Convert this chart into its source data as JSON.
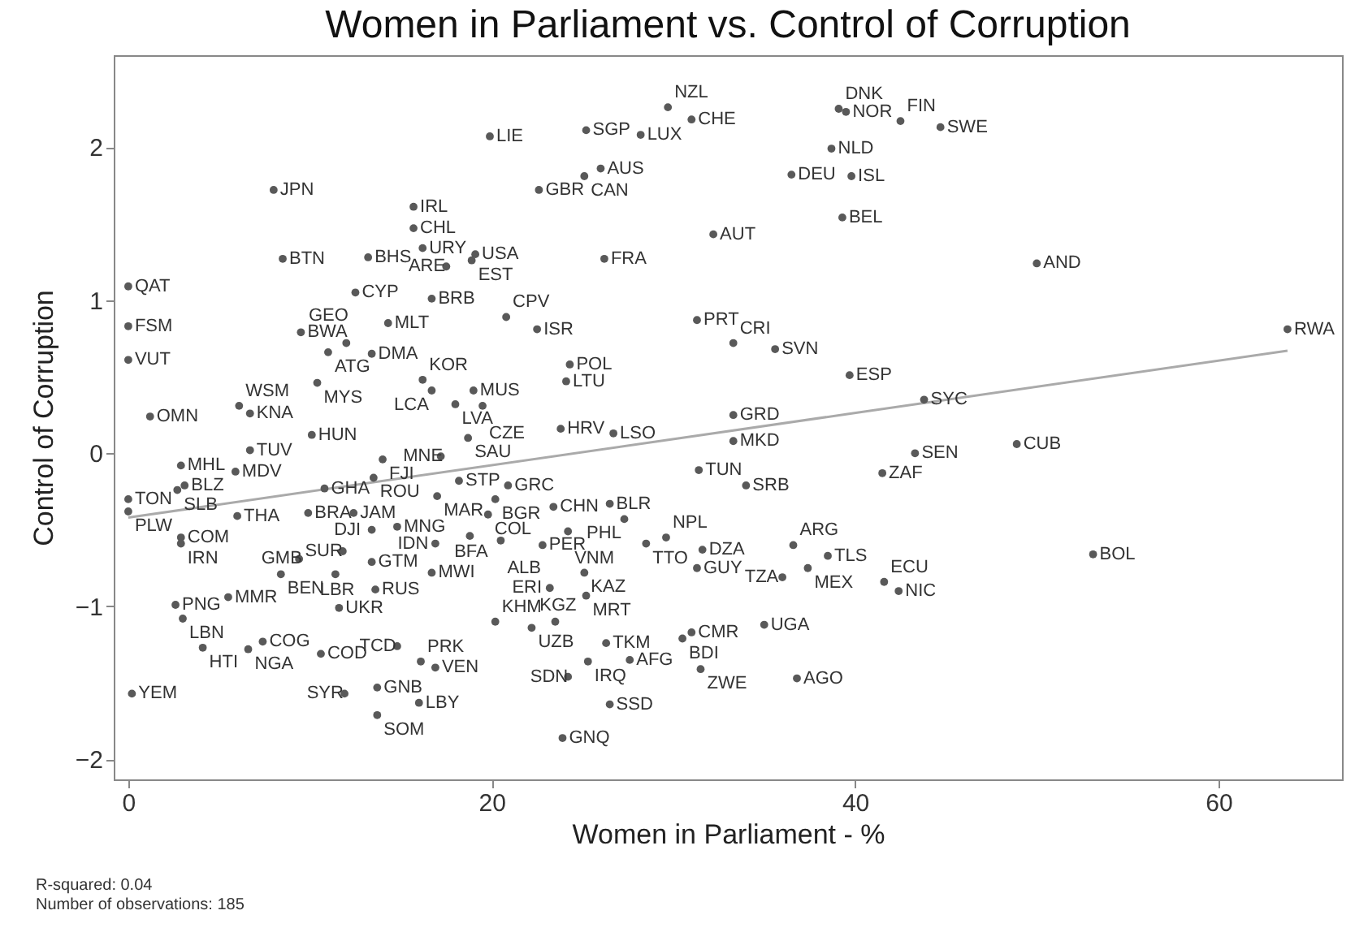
{
  "chart_data": {
    "type": "scatter",
    "title": "Women in Parliament vs. Control of Corruption",
    "xlabel": "Women in Parliament - %",
    "ylabel": "Control of Corruption",
    "xlim": [
      -0.8,
      66.8
    ],
    "ylim": [
      -2.13,
      2.6
    ],
    "xticks": [
      0,
      20,
      40,
      60
    ],
    "yticks": [
      -2,
      -1,
      0,
      1,
      2
    ],
    "grid": false,
    "annotations": [
      "R-squared: 0.04",
      "Number of observations: 185"
    ],
    "series": [
      {
        "color": "#595959",
        "marker": "circle",
        "x": [
          8.0,
          15.7,
          15.7,
          16.2,
          8.5,
          13.2,
          0.0,
          12.5,
          14.3,
          0.0,
          9.5,
          11.0,
          12.0,
          13.4,
          0.0,
          10.4,
          16.2,
          6.1,
          6.7,
          1.2,
          10.1,
          6.7,
          29.7,
          31.0,
          19.9,
          25.2,
          28.2,
          26.0,
          25.1,
          22.6,
          32.2,
          19.1,
          18.9,
          17.5,
          26.2,
          16.7,
          20.8,
          22.5,
          31.3,
          33.3,
          35.6,
          24.3,
          24.1,
          16.7,
          19.0,
          18.0,
          19.5,
          23.8,
          26.7,
          18.7,
          33.3,
          33.3,
          39.1,
          39.5,
          42.5,
          44.7,
          38.7,
          36.5,
          39.8,
          39.3,
          50.0,
          63.8,
          39.7,
          43.8,
          43.3,
          48.9,
          41.5,
          34.0,
          31.4,
          36.6,
          38.5,
          37.4,
          36.0,
          41.6,
          42.4,
          53.1,
          35.0,
          36.8,
          31.6,
          31.3,
          31.0,
          30.5,
          31.5,
          17.2,
          18.2,
          20.9,
          17.0,
          20.2,
          23.4,
          26.5,
          19.8,
          22.8,
          24.2,
          27.3,
          18.8,
          20.5,
          16.9,
          29.6,
          28.5,
          16.7,
          25.1,
          25.2,
          23.2,
          20.2,
          22.2,
          23.5,
          26.3,
          25.3,
          27.6,
          24.2,
          26.5,
          23.9,
          16.1,
          16.9,
          14.8,
          2.9,
          5.9,
          3.1,
          0.0,
          2.7,
          0.0,
          10.8,
          14.0,
          13.5,
          2.9,
          2.9,
          6.0,
          9.9,
          12.4,
          13.4,
          14.8,
          11.8,
          13.4,
          9.4,
          8.4,
          11.4,
          13.6,
          11.6,
          5.5,
          2.6,
          3.0,
          4.1,
          7.4,
          6.6,
          10.6,
          0.2,
          11.9,
          13.7,
          13.7,
          16.0
        ],
        "values": [
          1.72,
          1.61,
          1.47,
          1.34,
          1.27,
          1.28,
          1.09,
          1.05,
          0.85,
          0.83,
          0.79,
          0.66,
          0.72,
          0.65,
          0.61,
          0.46,
          0.48,
          0.31,
          0.26,
          0.24,
          0.12,
          0.02,
          2.26,
          2.18,
          2.07,
          2.11,
          2.08,
          1.86,
          1.81,
          1.72,
          1.43,
          1.3,
          1.26,
          1.22,
          1.27,
          1.01,
          0.89,
          0.81,
          0.87,
          0.72,
          0.68,
          0.58,
          0.47,
          0.41,
          0.41,
          0.32,
          0.31,
          0.16,
          0.13,
          0.1,
          0.25,
          0.08,
          2.25,
          2.23,
          2.17,
          2.13,
          1.99,
          1.82,
          1.81,
          1.54,
          1.24,
          0.81,
          0.51,
          0.35,
          0.0,
          0.06,
          -0.13,
          -0.21,
          -0.11,
          -0.6,
          -0.67,
          -0.75,
          -0.81,
          -0.84,
          -0.9,
          -0.66,
          -1.12,
          -1.47,
          -0.63,
          -0.75,
          -1.17,
          -1.21,
          -1.41,
          -0.02,
          -0.18,
          -0.21,
          -0.28,
          -0.3,
          -0.35,
          -0.33,
          -0.4,
          -0.6,
          -0.51,
          -0.43,
          -0.54,
          -0.57,
          -0.59,
          -0.55,
          -0.59,
          -0.78,
          -0.78,
          -0.93,
          -0.88,
          -1.1,
          -1.14,
          -1.1,
          -1.24,
          -1.36,
          -1.35,
          -1.46,
          -1.64,
          -1.86,
          -1.36,
          -1.4,
          -1.26,
          -0.08,
          -0.12,
          -0.21,
          -0.3,
          -0.24,
          -0.38,
          -0.23,
          -0.04,
          -0.16,
          -0.55,
          -0.59,
          -0.41,
          -0.39,
          -0.39,
          -0.5,
          -0.48,
          -0.64,
          -0.71,
          -0.69,
          -0.79,
          -0.79,
          -0.89,
          -1.01,
          -0.94,
          -0.99,
          -1.08,
          -1.27,
          -1.23,
          -1.28,
          -1.31,
          -1.57,
          -1.57,
          -1.53,
          -1.71,
          -1.63
        ],
        "value_labels": [
          "JPN",
          "IRL",
          "CHL",
          "URY",
          "BTN",
          "BHS",
          "QAT",
          "CYP",
          "MLT",
          "FSM",
          "BWA",
          "ATG",
          "GEO",
          "DMA",
          "VUT",
          "MYS",
          "KOR",
          "WSM",
          "KNA",
          "OMN",
          "HUN",
          "TUV",
          "NZL",
          "CHE",
          "LIE",
          "SGP",
          "LUX",
          "AUS",
          "CAN",
          "GBR",
          "AUT",
          "USA",
          "EST",
          "ARE",
          "FRA",
          "BRB",
          "CPV",
          "ISR",
          "PRT",
          "CRI",
          "SVN",
          "POL",
          "LTU",
          "LCA",
          "MUS",
          "LVA",
          "CZE",
          "HRV",
          "LSO",
          "SAU",
          "GRD",
          "MKD",
          "DNK",
          "NOR",
          "FIN",
          "SWE",
          "NLD",
          "DEU",
          "ISL",
          "BEL",
          "AND",
          "RWA",
          "ESP",
          "SYC",
          "SEN",
          "CUB",
          "ZAF",
          "SRB",
          "TUN",
          "ARG",
          "TLS",
          "MEX",
          "TZA",
          "ECU",
          "NIC",
          "BOL",
          "UGA",
          "AGO",
          "DZA",
          "GUY",
          "CMR",
          "BDI",
          "ZWE",
          "MNE",
          "STP",
          "GRC",
          "MAR",
          "BGR",
          "CHN",
          "BLR",
          "COL",
          "PER",
          "VNM",
          "PHL",
          "BFA",
          "ALB",
          "IDN",
          "NPL",
          "TTO",
          "MWI",
          "KAZ",
          "MRT",
          "ERI",
          "KHM",
          "UZB",
          "KGZ",
          "TKM",
          "IRQ",
          "AFG",
          "SDN",
          "SSD",
          "GNQ",
          "PRK",
          "VEN",
          "TCD",
          "MHL",
          "MDV",
          "BLZ",
          "TON",
          "SLB",
          "PLW",
          "GHA",
          "FJI",
          "ROU",
          "COM",
          "IRN",
          "THA",
          "BRA",
          "JAM",
          "DJI",
          "MNG",
          "SUR",
          "GTM",
          "GMB",
          "BEN",
          "LBR",
          "RUS",
          "UKR",
          "MMR",
          "PNG",
          "LBN",
          "HTI",
          "COG",
          "NGA",
          "COD",
          "YEM",
          "SYR",
          "GNB",
          "SOM",
          "LBY"
        ]
      },
      {
        "type": "line",
        "color": "#aaaaaa",
        "line_style": "solid",
        "x": [
          0,
          63.8
        ],
        "values": [
          -0.42,
          0.67
        ]
      }
    ]
  }
}
